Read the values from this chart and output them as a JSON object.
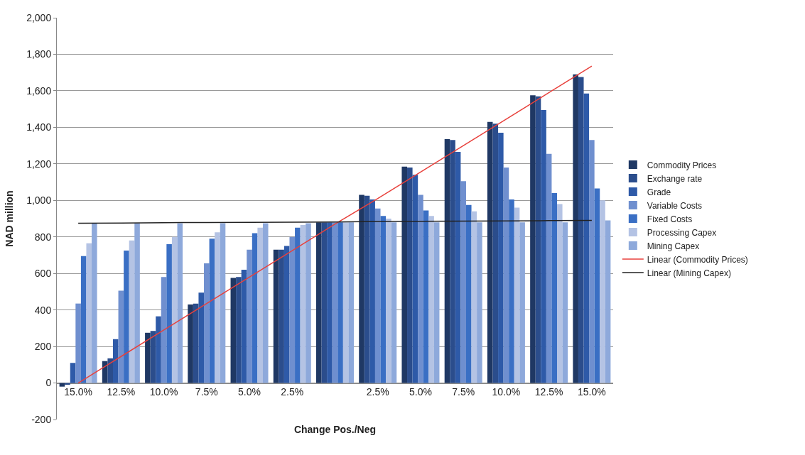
{
  "chart_data": {
    "type": "bar",
    "xlabel": "Change Pos./Neg",
    "ylabel": "NAD million",
    "categories": [
      "15.0%",
      "12.5%",
      "10.0%",
      "7.5%",
      "5.0%",
      "2.5%",
      null,
      "2.5%",
      "5.0%",
      "7.5%",
      "10.0%",
      "12.5%",
      "15.0%"
    ],
    "series": [
      {
        "name": "Commodity Prices",
        "color": "#1f3864",
        "values": [
          -20,
          120,
          275,
          430,
          575,
          730,
          880,
          1030,
          1185,
          1335,
          1430,
          1575,
          1690
        ]
      },
      {
        "name": "Exchange rate",
        "color": "#2b4d8c",
        "values": [
          -10,
          135,
          285,
          435,
          580,
          730,
          880,
          1025,
          1180,
          1330,
          1420,
          1570,
          1675
        ]
      },
      {
        "name": "Grade",
        "color": "#2e5aa8",
        "values": [
          110,
          240,
          365,
          495,
          620,
          750,
          880,
          1005,
          1140,
          1265,
          1370,
          1495,
          1585
        ]
      },
      {
        "name": "Variable Costs",
        "color": "#6f8fcf",
        "values": [
          435,
          505,
          580,
          655,
          730,
          800,
          880,
          955,
          1030,
          1105,
          1180,
          1255,
          1330
        ]
      },
      {
        "name": "Fixed Costs",
        "color": "#3a6fc4",
        "values": [
          695,
          725,
          760,
          790,
          820,
          850,
          880,
          915,
          945,
          975,
          1005,
          1040,
          1065
        ]
      },
      {
        "name": "Processing Capex",
        "color": "#b4c3e4",
        "values": [
          765,
          780,
          800,
          825,
          850,
          865,
          880,
          900,
          915,
          940,
          960,
          980,
          1000
        ]
      },
      {
        "name": "Mining Capex",
        "color": "#8ea9db",
        "values": [
          875,
          875,
          875,
          875,
          875,
          875,
          880,
          880,
          880,
          880,
          880,
          880,
          890
        ]
      },
      {
        "name": "Linear (Commodity Prices)",
        "type": "line",
        "color": "#e8413c",
        "values": [
          0,
          145,
          290,
          435,
          580,
          725,
          870,
          1010,
          1155,
          1300,
          1445,
          1590,
          1735
        ]
      },
      {
        "name": "Linear (Mining Capex)",
        "type": "line",
        "color": "#222222",
        "values": [
          875,
          876,
          878,
          879,
          880,
          881,
          882,
          884,
          885,
          886,
          887,
          889,
          890
        ]
      }
    ],
    "ylim": [
      -200,
      2000
    ],
    "yticks": [
      -200,
      0,
      200,
      400,
      600,
      800,
      {
        "value": 1000,
        "label": "1,000"
      },
      {
        "value": 1200,
        "label": "1,200"
      },
      {
        "value": 1400,
        "label": "1,400"
      },
      {
        "value": 1600,
        "label": "1,600"
      },
      {
        "value": 1800,
        "label": "1,800"
      },
      {
        "value": 2000,
        "label": "2,000"
      }
    ],
    "grid": "y",
    "legend": "right",
    "marker": "none",
    "line_style": "solid"
  }
}
